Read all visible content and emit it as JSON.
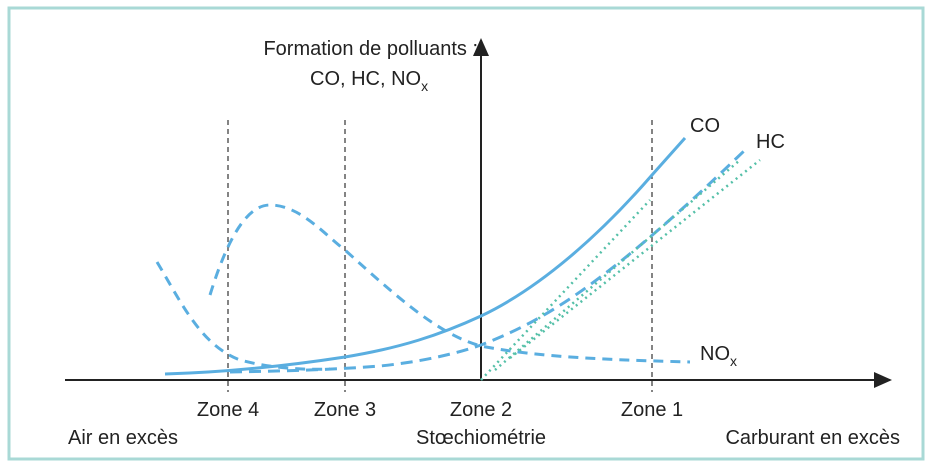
{
  "y_axis": {
    "title_line1": "Formation de polluants :",
    "title_line2": "CO, HC, NO",
    "title_line2_subscript": "x"
  },
  "curves": [
    {
      "label": "CO"
    },
    {
      "label": "HC"
    },
    {
      "label": "NO",
      "subscript": "x"
    }
  ],
  "zones": [
    "Zone 4",
    "Zone 3",
    "Zone 2",
    "Zone 1"
  ],
  "regions": [
    "Air en excès",
    "Stœchiométrie",
    "Carburant en excès"
  ]
}
